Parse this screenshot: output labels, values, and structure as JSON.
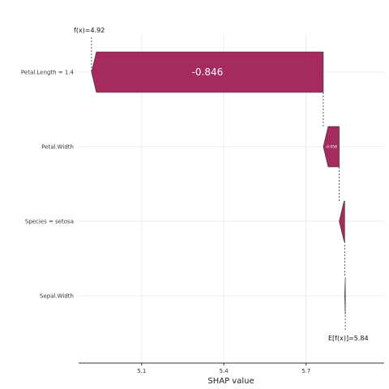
{
  "chart_data": {
    "type": "waterfall",
    "xlabel": "SHAP value",
    "x_ticks": [
      5.1,
      5.4,
      5.7
    ],
    "x_tick_labels": [
      "5.1",
      "5.4",
      "5.7"
    ],
    "xlim": [
      4.87,
      5.985
    ],
    "baseline_label": "E[f(x)]=5.84",
    "prediction_label": "f(x)=4.92",
    "baseline": 5.8433,
    "prediction": 4.917,
    "bars": [
      {
        "feature": "Petal.Length = 1.4",
        "value": -0.846,
        "value_label": "-0.846",
        "start": 5.763,
        "end": 4.917
      },
      {
        "feature": "Petal.Width",
        "value": -0.058,
        "value_label": "-0.058",
        "start": 5.821,
        "end": 5.763
      },
      {
        "feature": "Species = setosa",
        "value": -0.02,
        "value_label": "",
        "start": 5.841,
        "end": 5.821
      },
      {
        "feature": "Sepal.Width",
        "value": -0.0023,
        "value_label": "",
        "start": 5.8433,
        "end": 5.841
      }
    ],
    "colors": {
      "negative": "#a52a5e",
      "small": "#e8b84a",
      "grid": "#ebebeb",
      "axis": "#333333"
    },
    "grid": true
  }
}
